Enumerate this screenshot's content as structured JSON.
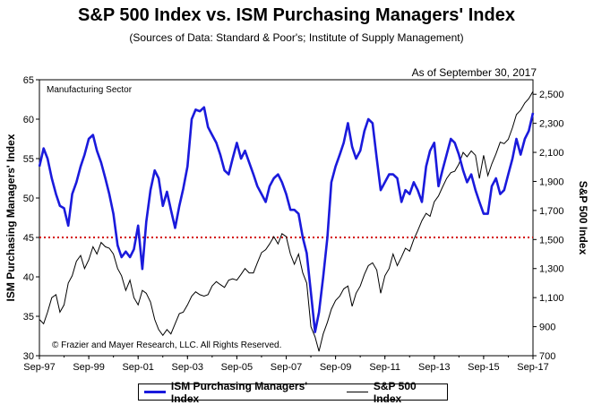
{
  "chart_data": {
    "type": "line",
    "title": "S&P 500 Index vs. ISM Purchasing Managers' Index",
    "subtitle": "(Sources of Data: Standard & Poor's; Institute of Supply Management)",
    "as_of": "As of September 30, 2017",
    "sector_label": "Manufacturing Sector",
    "copyright": "© Frazier and Mayer Research, LLC. All Rights Reserved.",
    "ylabel_left": "ISM Purchasing Managers' Index",
    "ylabel_right": "S&P 500 Index",
    "ylim_left": [
      30,
      65
    ],
    "ylim_right": [
      700,
      2600
    ],
    "x_range": [
      1997.75,
      2017.75
    ],
    "x_ticks": [
      "Sep-97",
      "Sep-99",
      "Sep-01",
      "Sep-03",
      "Sep-05",
      "Sep-07",
      "Sep-09",
      "Sep-11",
      "Sep-13",
      "Sep-15",
      "Sep-17"
    ],
    "y_ticks_left": [
      30,
      35,
      40,
      45,
      50,
      55,
      60,
      65
    ],
    "y_ticks_right": [
      "700",
      "900",
      "1,100",
      "1,300",
      "1,500",
      "1,700",
      "1,900",
      "2,100",
      "2,300",
      "2,500"
    ],
    "reference_line": {
      "axis": "left",
      "value": 45,
      "color": "#d40000",
      "style": "dotted"
    },
    "colors": {
      "ism": "#1a1adc",
      "spx": "#000000"
    },
    "series": [
      {
        "name": "ISM Purchasing Managers' Index",
        "axis": "left",
        "points": [
          [
            1997.75,
            54.0
          ],
          [
            1997.92,
            56.3
          ],
          [
            1998.08,
            55.0
          ],
          [
            1998.25,
            52.5
          ],
          [
            1998.42,
            50.5
          ],
          [
            1998.58,
            49.0
          ],
          [
            1998.75,
            48.7
          ],
          [
            1998.92,
            46.5
          ],
          [
            1999.08,
            50.5
          ],
          [
            1999.25,
            52.0
          ],
          [
            1999.42,
            54.0
          ],
          [
            1999.58,
            55.5
          ],
          [
            1999.75,
            57.5
          ],
          [
            1999.92,
            58.0
          ],
          [
            2000.08,
            56.0
          ],
          [
            2000.25,
            54.5
          ],
          [
            2000.42,
            52.5
          ],
          [
            2000.58,
            50.5
          ],
          [
            2000.75,
            48.0
          ],
          [
            2000.92,
            44.0
          ],
          [
            2001.08,
            42.5
          ],
          [
            2001.25,
            43.2
          ],
          [
            2001.42,
            42.5
          ],
          [
            2001.58,
            43.5
          ],
          [
            2001.75,
            46.5
          ],
          [
            2001.92,
            41.0
          ],
          [
            2002.08,
            47.0
          ],
          [
            2002.25,
            51.0
          ],
          [
            2002.42,
            53.5
          ],
          [
            2002.58,
            52.5
          ],
          [
            2002.75,
            49.0
          ],
          [
            2002.92,
            50.8
          ],
          [
            2003.08,
            48.5
          ],
          [
            2003.25,
            46.2
          ],
          [
            2003.42,
            49.0
          ],
          [
            2003.58,
            51.2
          ],
          [
            2003.75,
            54.0
          ],
          [
            2003.92,
            60.0
          ],
          [
            2004.08,
            61.2
          ],
          [
            2004.25,
            61.0
          ],
          [
            2004.42,
            61.5
          ],
          [
            2004.58,
            59.0
          ],
          [
            2004.75,
            58.0
          ],
          [
            2004.92,
            57.0
          ],
          [
            2005.08,
            55.5
          ],
          [
            2005.25,
            53.5
          ],
          [
            2005.42,
            53.0
          ],
          [
            2005.58,
            55.0
          ],
          [
            2005.75,
            57.0
          ],
          [
            2005.92,
            55.0
          ],
          [
            2006.08,
            56.0
          ],
          [
            2006.25,
            54.5
          ],
          [
            2006.42,
            53.0
          ],
          [
            2006.58,
            51.5
          ],
          [
            2006.75,
            50.5
          ],
          [
            2006.92,
            49.5
          ],
          [
            2007.08,
            51.5
          ],
          [
            2007.25,
            52.5
          ],
          [
            2007.42,
            53.0
          ],
          [
            2007.58,
            52.0
          ],
          [
            2007.75,
            50.5
          ],
          [
            2007.92,
            48.5
          ],
          [
            2008.08,
            48.5
          ],
          [
            2008.25,
            48.0
          ],
          [
            2008.42,
            45.0
          ],
          [
            2008.58,
            43.0
          ],
          [
            2008.75,
            38.0
          ],
          [
            2008.92,
            33.0
          ],
          [
            2009.08,
            35.5
          ],
          [
            2009.25,
            40.0
          ],
          [
            2009.42,
            45.0
          ],
          [
            2009.58,
            52.0
          ],
          [
            2009.75,
            54.0
          ],
          [
            2009.92,
            55.5
          ],
          [
            2010.08,
            57.0
          ],
          [
            2010.25,
            59.5
          ],
          [
            2010.42,
            56.5
          ],
          [
            2010.58,
            55.0
          ],
          [
            2010.75,
            56.0
          ],
          [
            2010.92,
            58.5
          ],
          [
            2011.08,
            60.0
          ],
          [
            2011.25,
            59.5
          ],
          [
            2011.42,
            55.0
          ],
          [
            2011.58,
            51.0
          ],
          [
            2011.75,
            52.0
          ],
          [
            2011.92,
            53.0
          ],
          [
            2012.08,
            53.0
          ],
          [
            2012.25,
            52.5
          ],
          [
            2012.42,
            49.5
          ],
          [
            2012.58,
            51.0
          ],
          [
            2012.75,
            50.5
          ],
          [
            2012.92,
            52.0
          ],
          [
            2013.08,
            51.0
          ],
          [
            2013.25,
            49.5
          ],
          [
            2013.42,
            54.0
          ],
          [
            2013.58,
            56.0
          ],
          [
            2013.75,
            57.0
          ],
          [
            2013.92,
            51.5
          ],
          [
            2014.08,
            53.5
          ],
          [
            2014.25,
            55.5
          ],
          [
            2014.42,
            57.5
          ],
          [
            2014.58,
            57.0
          ],
          [
            2014.75,
            55.5
          ],
          [
            2014.92,
            53.5
          ],
          [
            2015.08,
            52.0
          ],
          [
            2015.25,
            53.0
          ],
          [
            2015.42,
            51.0
          ],
          [
            2015.58,
            49.5
          ],
          [
            2015.75,
            48.0
          ],
          [
            2015.92,
            48.0
          ],
          [
            2016.08,
            51.5
          ],
          [
            2016.25,
            52.5
          ],
          [
            2016.42,
            50.5
          ],
          [
            2016.58,
            51.0
          ],
          [
            2016.75,
            53.0
          ],
          [
            2016.92,
            55.0
          ],
          [
            2017.08,
            57.5
          ],
          [
            2017.25,
            55.5
          ],
          [
            2017.42,
            57.5
          ],
          [
            2017.58,
            58.5
          ],
          [
            2017.75,
            60.8
          ]
        ]
      },
      {
        "name": "S&P 500 Index",
        "axis": "right",
        "points": [
          [
            1997.75,
            950
          ],
          [
            1997.92,
            920
          ],
          [
            1998.08,
            1000
          ],
          [
            1998.25,
            1100
          ],
          [
            1998.42,
            1120
          ],
          [
            1998.58,
            1000
          ],
          [
            1998.75,
            1050
          ],
          [
            1998.92,
            1200
          ],
          [
            1999.08,
            1250
          ],
          [
            1999.25,
            1350
          ],
          [
            1999.42,
            1390
          ],
          [
            1999.58,
            1300
          ],
          [
            1999.75,
            1360
          ],
          [
            1999.92,
            1450
          ],
          [
            2000.08,
            1400
          ],
          [
            2000.25,
            1480
          ],
          [
            2000.42,
            1450
          ],
          [
            2000.58,
            1440
          ],
          [
            2000.75,
            1400
          ],
          [
            2000.92,
            1300
          ],
          [
            2001.08,
            1250
          ],
          [
            2001.25,
            1150
          ],
          [
            2001.42,
            1220
          ],
          [
            2001.58,
            1100
          ],
          [
            2001.75,
            1050
          ],
          [
            2001.92,
            1150
          ],
          [
            2002.08,
            1130
          ],
          [
            2002.25,
            1070
          ],
          [
            2002.42,
            950
          ],
          [
            2002.58,
            880
          ],
          [
            2002.75,
            840
          ],
          [
            2002.92,
            880
          ],
          [
            2003.08,
            850
          ],
          [
            2003.25,
            920
          ],
          [
            2003.42,
            990
          ],
          [
            2003.58,
            1000
          ],
          [
            2003.75,
            1050
          ],
          [
            2003.92,
            1110
          ],
          [
            2004.08,
            1140
          ],
          [
            2004.25,
            1120
          ],
          [
            2004.42,
            1110
          ],
          [
            2004.58,
            1120
          ],
          [
            2004.75,
            1180
          ],
          [
            2004.92,
            1210
          ],
          [
            2005.08,
            1190
          ],
          [
            2005.25,
            1170
          ],
          [
            2005.42,
            1220
          ],
          [
            2005.58,
            1230
          ],
          [
            2005.75,
            1220
          ],
          [
            2005.92,
            1260
          ],
          [
            2006.08,
            1300
          ],
          [
            2006.25,
            1270
          ],
          [
            2006.42,
            1270
          ],
          [
            2006.58,
            1340
          ],
          [
            2006.75,
            1410
          ],
          [
            2006.92,
            1430
          ],
          [
            2007.08,
            1470
          ],
          [
            2007.25,
            1520
          ],
          [
            2007.42,
            1470
          ],
          [
            2007.58,
            1540
          ],
          [
            2007.75,
            1520
          ],
          [
            2007.92,
            1400
          ],
          [
            2008.08,
            1330
          ],
          [
            2008.25,
            1400
          ],
          [
            2008.42,
            1270
          ],
          [
            2008.58,
            1200
          ],
          [
            2008.75,
            900
          ],
          [
            2008.92,
            830
          ],
          [
            2009.08,
            730
          ],
          [
            2009.25,
            850
          ],
          [
            2009.42,
            930
          ],
          [
            2009.58,
            1020
          ],
          [
            2009.75,
            1080
          ],
          [
            2009.92,
            1110
          ],
          [
            2010.08,
            1160
          ],
          [
            2010.25,
            1180
          ],
          [
            2010.42,
            1040
          ],
          [
            2010.58,
            1130
          ],
          [
            2010.75,
            1180
          ],
          [
            2010.92,
            1260
          ],
          [
            2011.08,
            1320
          ],
          [
            2011.25,
            1340
          ],
          [
            2011.42,
            1290
          ],
          [
            2011.58,
            1130
          ],
          [
            2011.75,
            1250
          ],
          [
            2011.92,
            1300
          ],
          [
            2012.08,
            1400
          ],
          [
            2012.25,
            1320
          ],
          [
            2012.42,
            1380
          ],
          [
            2012.58,
            1440
          ],
          [
            2012.75,
            1420
          ],
          [
            2012.92,
            1500
          ],
          [
            2013.08,
            1560
          ],
          [
            2013.25,
            1630
          ],
          [
            2013.42,
            1680
          ],
          [
            2013.58,
            1660
          ],
          [
            2013.75,
            1760
          ],
          [
            2013.92,
            1800
          ],
          [
            2014.08,
            1860
          ],
          [
            2014.25,
            1920
          ],
          [
            2014.42,
            1960
          ],
          [
            2014.58,
            1970
          ],
          [
            2014.75,
            2020
          ],
          [
            2014.92,
            2100
          ],
          [
            2015.08,
            2070
          ],
          [
            2015.25,
            2110
          ],
          [
            2015.42,
            2080
          ],
          [
            2015.58,
            1920
          ],
          [
            2015.75,
            2080
          ],
          [
            2015.92,
            1940
          ],
          [
            2016.08,
            2020
          ],
          [
            2016.25,
            2090
          ],
          [
            2016.42,
            2170
          ],
          [
            2016.58,
            2160
          ],
          [
            2016.75,
            2190
          ],
          [
            2016.92,
            2270
          ],
          [
            2017.08,
            2360
          ],
          [
            2017.25,
            2390
          ],
          [
            2017.42,
            2440
          ],
          [
            2017.58,
            2470
          ],
          [
            2017.75,
            2520
          ]
        ]
      }
    ],
    "legend": [
      "ISM Purchasing Managers' Index",
      "S&P 500 Index"
    ],
    "legend_position": "bottom-center",
    "grid": false
  }
}
